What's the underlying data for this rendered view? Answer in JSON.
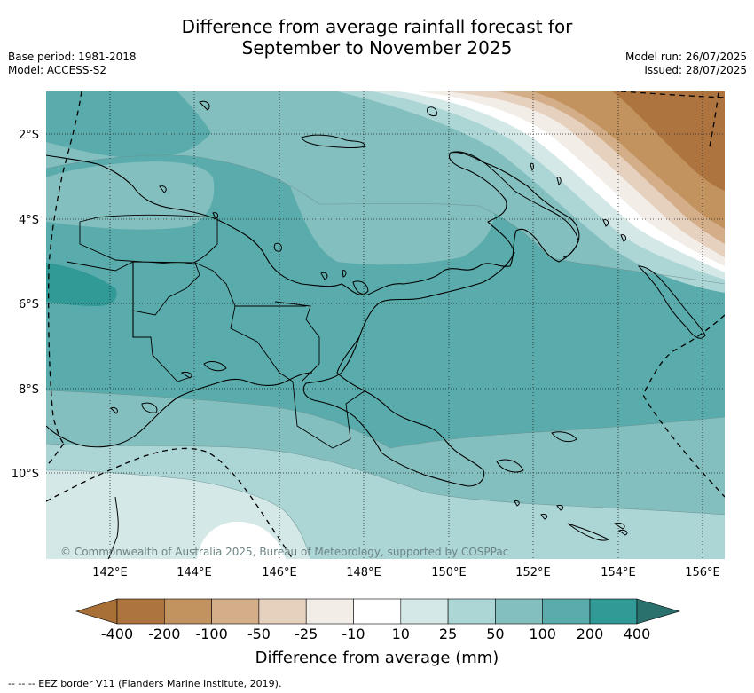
{
  "title_line1": "Difference from average rainfall forecast for",
  "title_line2": "September to November 2025",
  "base_period": "Base period: 1981-2018",
  "model": "Model: ACCESS-S2",
  "model_run": "Model run: 26/07/2025",
  "issued": "Issued: 28/07/2025",
  "copyright": "© Commonwealth of Australia 2025, Bureau of Meteorology, supported by COSPPac",
  "lon_labels": [
    "142°E",
    "144°E",
    "146°E",
    "148°E",
    "150°E",
    "152°E",
    "154°E",
    "156°E"
  ],
  "lat_labels": [
    "2°S",
    "4°S",
    "6°S",
    "8°S",
    "10°S"
  ],
  "colorbar": {
    "title": "Difference from average (mm)",
    "tick_labels": [
      "-400",
      "-200",
      "-100",
      "-50",
      "-25",
      "-10",
      "10",
      "25",
      "50",
      "100",
      "200",
      "400"
    ],
    "colors": [
      "#a86f36",
      "#ad7440",
      "#c2935e",
      "#d4ae89",
      "#e6d0be",
      "#f3ede8",
      "#ffffff",
      "#d3e8e7",
      "#acd5d5",
      "#84bfbf",
      "#5aabab",
      "#319996",
      "#2a706c"
    ]
  },
  "footnote": "--  --  -- EEZ border V11 (Flanders Marine Institute, 2019).",
  "map_colors": {
    "land_outline": "#000000",
    "grid": "#222222"
  }
}
